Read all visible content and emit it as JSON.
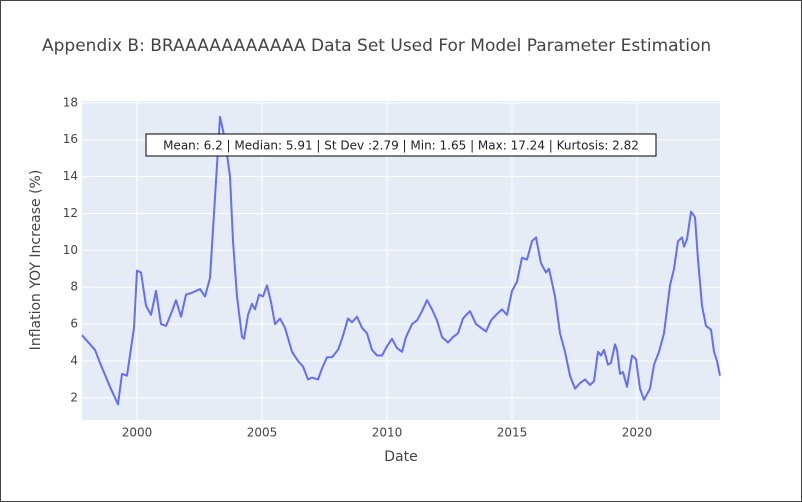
{
  "chart_data": {
    "type": "line",
    "title": "Appendix B: BRAAAAAAAAAAA Data Set Used For Model Parameter Estimation",
    "annotation": "Mean: 6.2 | Median: 5.91 | St Dev :2.79 | Min: 1.65 | Max: 17.24 | Kurtosis: 2.82",
    "x_label": "Date",
    "y_label": "Inflation YOY Increase (%)",
    "x": [
      1997.8,
      1998.32,
      1998.52,
      1998.92,
      1999.24,
      1999.4,
      1999.6,
      1999.88,
      2000,
      2000.16,
      2000.36,
      2000.56,
      2000.76,
      2000.96,
      2001.16,
      2001.4,
      2001.56,
      2001.76,
      2001.96,
      2002.2,
      2002.52,
      2002.72,
      2002.92,
      2003.08,
      2003.32,
      2003.52,
      2003.72,
      2003.84,
      2004,
      2004.2,
      2004.28,
      2004.44,
      2004.6,
      2004.72,
      2004.88,
      2005.04,
      2005.2,
      2005.36,
      2005.52,
      2005.72,
      2005.92,
      2006.2,
      2006.44,
      2006.64,
      2006.84,
      2007,
      2007.24,
      2007.4,
      2007.6,
      2007.8,
      2008.04,
      2008.2,
      2008.44,
      2008.6,
      2008.8,
      2009,
      2009.2,
      2009.4,
      2009.6,
      2009.8,
      2010,
      2010.2,
      2010.4,
      2010.6,
      2010.76,
      2011,
      2011.2,
      2011.4,
      2011.6,
      2011.8,
      2012,
      2012.2,
      2012.44,
      2012.64,
      2012.84,
      2013.04,
      2013.24,
      2013.32,
      2013.56,
      2013.76,
      2013.96,
      2014.16,
      2014.36,
      2014.6,
      2014.8,
      2015,
      2015.2,
      2015.4,
      2015.6,
      2015.8,
      2015.96,
      2016.16,
      2016.36,
      2016.48,
      2016.72,
      2016.92,
      2017.12,
      2017.32,
      2017.52,
      2017.72,
      2017.92,
      2018.12,
      2018.28,
      2018.44,
      2018.56,
      2018.68,
      2018.84,
      2018.96,
      2019.12,
      2019.2,
      2019.32,
      2019.44,
      2019.6,
      2019.8,
      2019.96,
      2020.12,
      2020.28,
      2020.52,
      2020.68,
      2020.88,
      2021.08,
      2021.2,
      2021.32,
      2021.48,
      2021.64,
      2021.8,
      2021.88,
      2022,
      2022.16,
      2022.32,
      2022.44,
      2022.6,
      2022.76,
      2022.96,
      2023.08,
      2023.2,
      2023.32
    ],
    "series": [
      {
        "name": "Inflation",
        "color": "#636efa",
        "values": [
          5.4,
          4.6,
          3.9,
          2.6,
          1.65,
          3.3,
          3.2,
          5.8,
          8.9,
          8.8,
          7.0,
          6.5,
          7.8,
          6.0,
          5.9,
          6.7,
          7.3,
          6.4,
          7.6,
          7.7,
          7.9,
          7.5,
          8.5,
          12.0,
          17.24,
          16.0,
          14.0,
          10.5,
          7.5,
          5.3,
          5.2,
          6.5,
          7.1,
          6.8,
          7.6,
          7.5,
          8.1,
          7.2,
          6.0,
          6.3,
          5.8,
          4.5,
          4.0,
          3.7,
          3.0,
          3.1,
          3.0,
          3.6,
          4.2,
          4.2,
          4.6,
          5.2,
          6.3,
          6.1,
          6.4,
          5.8,
          5.5,
          4.6,
          4.3,
          4.3,
          4.8,
          5.2,
          4.7,
          4.5,
          5.3,
          6.0,
          6.2,
          6.7,
          7.3,
          6.8,
          6.2,
          5.3,
          5.0,
          5.3,
          5.5,
          6.3,
          6.6,
          6.7,
          6.0,
          5.8,
          5.6,
          6.2,
          6.5,
          6.8,
          6.5,
          7.8,
          8.3,
          9.6,
          9.5,
          10.5,
          10.7,
          9.3,
          8.8,
          9.0,
          7.5,
          5.5,
          4.5,
          3.2,
          2.5,
          2.8,
          3.0,
          2.7,
          2.9,
          4.5,
          4.3,
          4.6,
          3.8,
          3.9,
          4.9,
          4.6,
          3.3,
          3.4,
          2.6,
          4.3,
          4.1,
          2.5,
          1.9,
          2.5,
          3.8,
          4.5,
          5.5,
          6.8,
          8.1,
          9.0,
          10.5,
          10.7,
          10.2,
          10.6,
          12.1,
          11.8,
          9.5,
          7.0,
          5.9,
          5.7,
          4.5,
          4.0,
          3.2
        ]
      }
    ],
    "xlim": [
      1997.8,
      2023.32
    ],
    "xticks": [
      2000,
      2005,
      2010,
      2015,
      2020
    ],
    "ylim": [
      0.8,
      18.1
    ],
    "yticks": [
      2,
      4,
      6,
      8,
      10,
      12,
      14,
      16,
      18
    ],
    "grid": true
  }
}
